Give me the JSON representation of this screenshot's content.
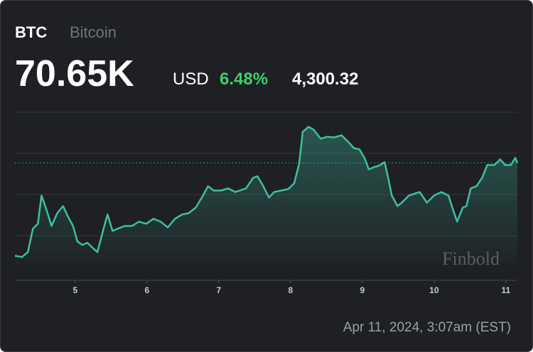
{
  "chart_data": {
    "type": "line",
    "title": "BTC",
    "subtitle": "Bitcoin",
    "price": "70.65K",
    "currency": "USD",
    "change_percent": "6.48%",
    "change": "4,300.32",
    "timestamp": "Apr 11, 2024, 3:07am (EST)",
    "watermark": "Finbold",
    "color": "#3fbfa0",
    "reference_value": 70650,
    "x": [
      4.16,
      4.26,
      4.34,
      4.41,
      4.48,
      4.53,
      4.6,
      4.67,
      4.75,
      4.83,
      4.9,
      4.97,
      5.03,
      5.1,
      5.17,
      5.25,
      5.31,
      5.4,
      5.45,
      5.52,
      5.59,
      5.69,
      5.79,
      5.89,
      5.99,
      6.09,
      6.19,
      6.29,
      6.39,
      6.49,
      6.58,
      6.68,
      6.78,
      6.85,
      6.93,
      7.03,
      7.13,
      7.23,
      7.38,
      7.48,
      7.54,
      7.62,
      7.7,
      7.77,
      7.87,
      7.97,
      8.05,
      8.12,
      8.17,
      8.25,
      8.32,
      8.42,
      8.51,
      8.61,
      8.71,
      8.81,
      8.88,
      8.96,
      9.03,
      9.09,
      9.16,
      9.23,
      9.31,
      9.36,
      9.41,
      9.49,
      9.55,
      9.65,
      9.8,
      9.9,
      10.0,
      10.1,
      10.2,
      10.28,
      10.32,
      10.4,
      10.45,
      10.51,
      10.59,
      10.67,
      10.74,
      10.84,
      10.92,
      10.99,
      11.07,
      11.13,
      11.16
    ],
    "values": [
      66350,
      66290,
      66520,
      67600,
      67830,
      69140,
      68480,
      67730,
      68320,
      68650,
      68160,
      67730,
      67010,
      66850,
      66950,
      66690,
      66520,
      67660,
      68260,
      67500,
      67600,
      67730,
      67730,
      67930,
      67830,
      68060,
      67930,
      67660,
      68060,
      68260,
      68320,
      68580,
      69140,
      69570,
      69370,
      69370,
      69470,
      69300,
      69470,
      69960,
      70030,
      69570,
      69040,
      69300,
      69370,
      69440,
      69700,
      70620,
      72090,
      72320,
      72190,
      71770,
      71860,
      71830,
      71930,
      71600,
      71340,
      71270,
      70880,
      70350,
      70450,
      70520,
      70680,
      69960,
      69140,
      68650,
      68810,
      69140,
      69300,
      68810,
      69140,
      69300,
      69140,
      68320,
      67930,
      68580,
      68650,
      69470,
      69570,
      69960,
      70550,
      70550,
      70810,
      70550,
      70550,
      70880,
      70650
    ],
    "xlim": [
      4.16,
      11.16
    ],
    "xticks": [
      5,
      6,
      7,
      8,
      9,
      10,
      11
    ],
    "ylim": [
      66000,
      73000
    ]
  }
}
